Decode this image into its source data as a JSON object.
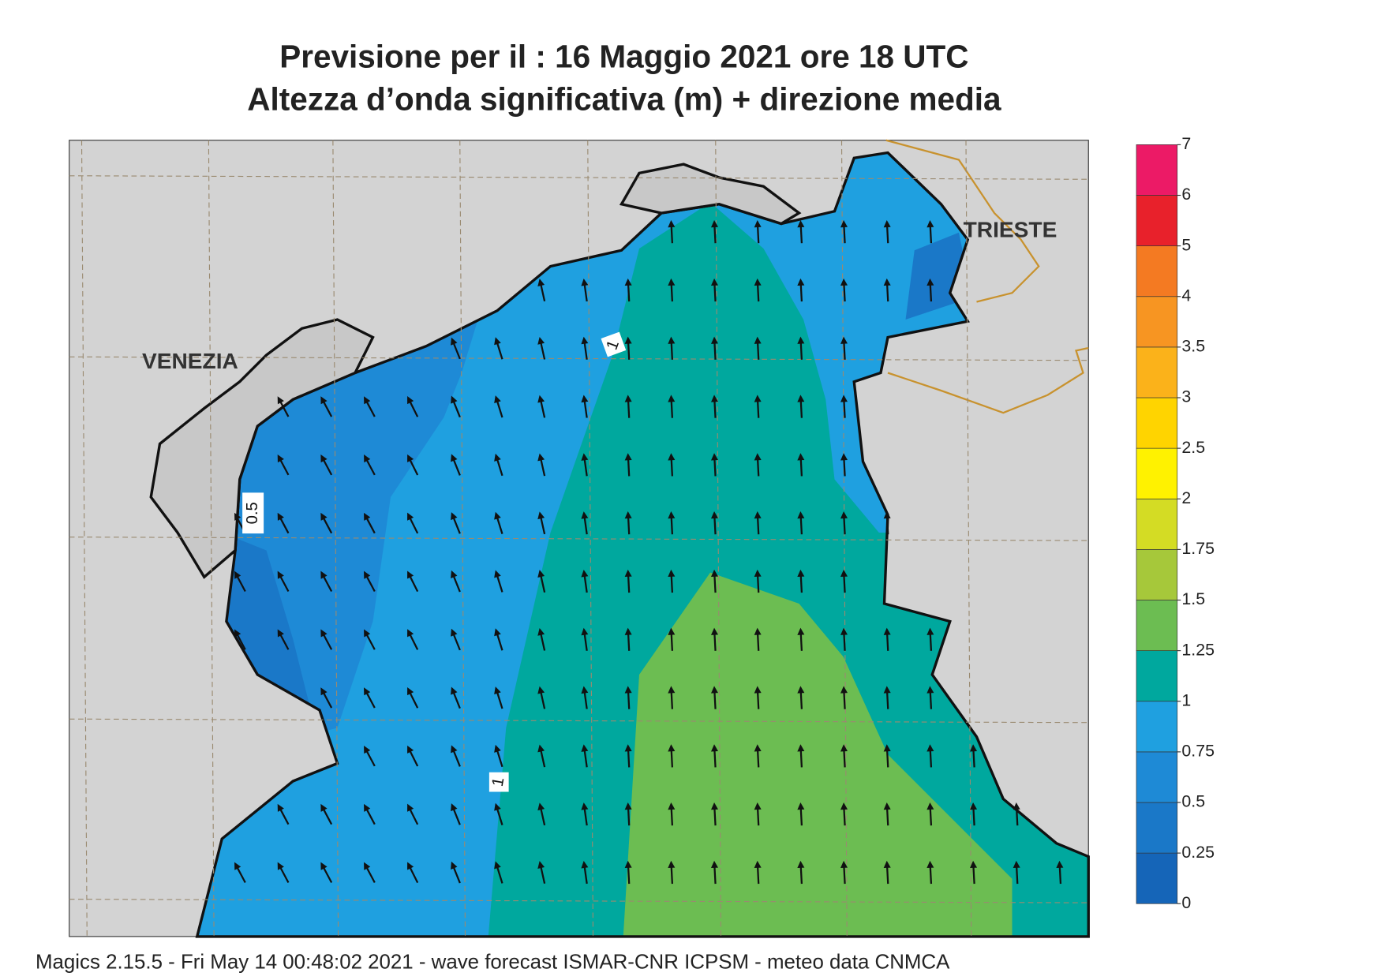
{
  "title": "Previsione per il  :  16   Maggio  2021   ore 18 UTC",
  "subtitle": "Altezza d’onda significativa (m) + direzione media",
  "places": [
    "VENEZIA",
    "TRIESTE"
  ],
  "contour_labels": [
    0.5,
    1,
    1
  ],
  "colorbar": {
    "levels": [
      0,
      0.25,
      0.5,
      0.75,
      1,
      1.25,
      1.5,
      1.75,
      2,
      2.5,
      3,
      3.5,
      4,
      5,
      6,
      7
    ],
    "colors": [
      "#1565b8",
      "#1a78c8",
      "#1e8ad6",
      "#1fa0e0",
      "#00a89e",
      "#6cbd52",
      "#a6c83a",
      "#d4dc24",
      "#fff200",
      "#ffd400",
      "#fbb21a",
      "#f79522",
      "#f47a22",
      "#e8212b",
      "#ec1a66"
    ]
  },
  "footer": "Magics 2.15.5 - Fri May 14 00:48:02 2021 - wave forecast  ISMAR-CNR  ICPSM - meteo data   CNMCA"
}
